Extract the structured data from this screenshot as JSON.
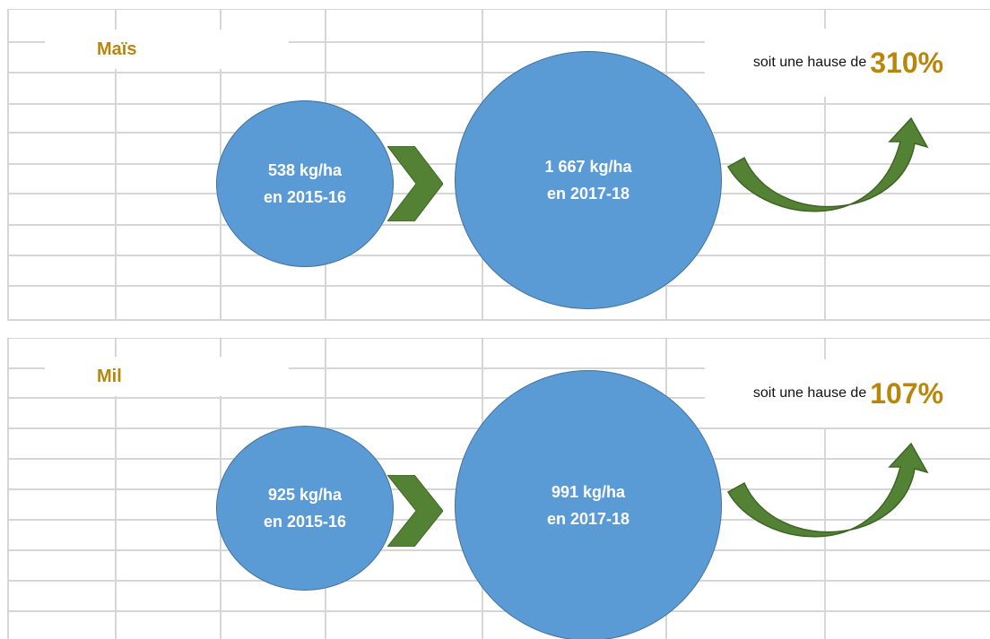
{
  "colors": {
    "circle_fill": "#5b9bd5",
    "circle_border": "#41719c",
    "arrow_green": "#548235",
    "highlight": "#b8860b",
    "grid": "#d6d6d6"
  },
  "panels": [
    {
      "title": "Maïs",
      "before": {
        "value": "538 kg/ha",
        "period": "en 2015-16"
      },
      "after": {
        "value": "1 667 kg/ha",
        "period": "en 2017-18"
      },
      "increase_text": "soit une  hause de",
      "increase_value": "310%"
    },
    {
      "title": "Mil",
      "before": {
        "value": "925 kg/ha",
        "period": "en 2015-16"
      },
      "after": {
        "value": "991 kg/ha",
        "period": "en 2017-18"
      },
      "increase_text": "soit une  hause de",
      "increase_value": "107%"
    }
  ]
}
